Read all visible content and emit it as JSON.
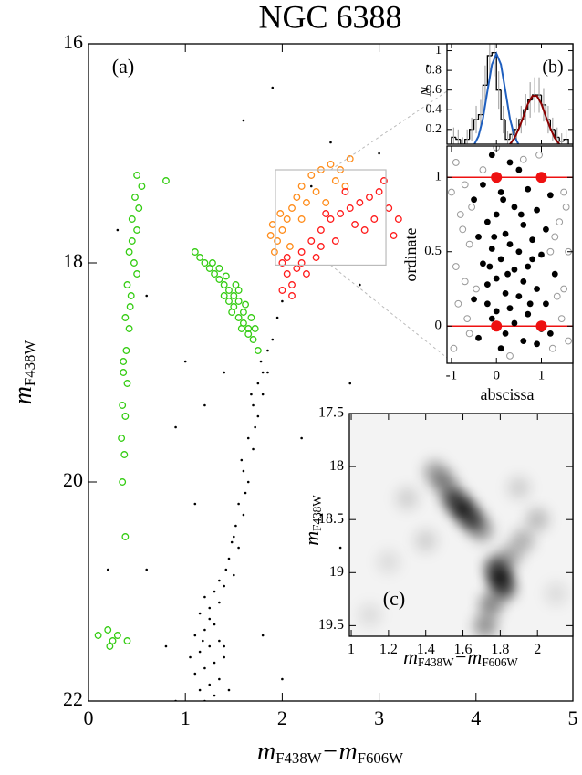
{
  "chart_data": [
    {
      "type": "scatter",
      "title": "NGC 6388",
      "panel_label": "(a)",
      "xlabel": [
        "m",
        "F438W",
        "−m",
        "F606W"
      ],
      "ylabel": [
        "m",
        "F438W"
      ],
      "xlim": [
        0,
        5
      ],
      "ylim": [
        22,
        16
      ],
      "xticks": [
        0,
        1,
        2,
        3,
        4,
        5
      ],
      "yticks": [
        16,
        18,
        20,
        22
      ],
      "zoom_box": {
        "xlim": [
          1.93,
          3.07
        ],
        "ylim": [
          18.02,
          17.15
        ],
        "color": "#bbbbbb"
      },
      "series": [
        {
          "color": "#000000",
          "marker": "dot",
          "x": [
            1.2,
            1.3,
            1.15,
            1.25,
            1.35,
            1.1,
            1.2,
            1.3,
            1.4,
            1.15,
            1.25,
            1.35,
            1.1,
            1.2,
            1.3,
            1.15,
            1.25,
            1.35,
            1.2,
            1.3,
            1.4,
            1.05,
            1.45,
            1.25,
            1.18,
            1.4,
            1.5,
            1.45,
            1.55,
            1.5,
            1.6,
            1.55,
            1.65,
            1.6,
            1.7,
            1.65,
            1.75,
            1.7,
            1.8,
            1.75,
            1.8,
            1.78,
            1.85,
            1.9,
            1.95,
            2.0,
            1.72,
            1.62,
            1.52,
            1.42,
            1.58,
            1.68,
            1.85,
            1.35,
            1.48,
            0.3,
            0.6,
            0.9,
            1.2,
            2.5,
            3.0,
            2.7,
            2.4,
            0.8,
            2.0,
            1.8,
            2.3,
            1.0,
            2.8,
            3.5,
            1.6,
            0.9,
            2.6,
            1.4,
            0.6,
            3.2,
            1.1,
            2.2,
            0.2,
            1.9
          ],
          "values": [
            22.0,
            21.95,
            21.9,
            21.85,
            21.8,
            21.75,
            21.7,
            21.65,
            21.6,
            21.55,
            21.5,
            21.45,
            21.4,
            21.35,
            21.3,
            21.2,
            21.15,
            21.1,
            21.05,
            21.0,
            21.5,
            21.6,
            21.9,
            21.25,
            21.45,
            20.95,
            20.85,
            20.7,
            20.6,
            20.5,
            20.3,
            20.2,
            20.0,
            19.9,
            19.7,
            19.6,
            19.4,
            19.3,
            19.2,
            19.1,
            19.0,
            18.9,
            18.8,
            18.7,
            18.5,
            18.35,
            19.5,
            20.1,
            20.4,
            20.8,
            19.8,
            19.2,
            19.0,
            20.9,
            20.55,
            17.7,
            20.8,
            19.5,
            19.3,
            16.9,
            17.0,
            19.1,
            20.3,
            21.5,
            21.8,
            21.4,
            17.3,
            18.9,
            18.2,
            16.2,
            16.7,
            22.0,
            20.6,
            19.0,
            18.3,
            19.5,
            20.2,
            19.6,
            20.8,
            16.4
          ]
        },
        {
          "color": "#33cc11",
          "marker": "ring",
          "x": [
            0.5,
            0.55,
            0.48,
            0.52,
            0.45,
            0.5,
            0.42,
            0.47,
            0.4,
            0.44,
            0.38,
            0.42,
            0.39,
            0.36,
            0.4,
            0.35,
            0.38,
            0.34,
            0.37,
            0.35,
            0.38,
            0.45,
            0.5,
            0.43,
            0.36,
            0.8,
            0.2,
            0.25,
            0.3,
            0.22,
            0.4,
            0.1,
            1.1,
            1.15,
            1.2,
            1.25,
            1.3,
            1.35,
            1.4,
            1.45,
            1.5,
            1.55,
            1.6,
            1.45,
            1.5,
            1.55,
            1.6,
            1.65,
            1.7,
            1.75,
            1.55,
            1.62,
            1.4,
            1.48,
            1.58,
            1.68,
            1.35,
            1.28,
            1.42,
            1.52,
            1.65,
            1.72
          ],
          "values": [
            17.2,
            17.3,
            17.4,
            17.5,
            17.6,
            17.7,
            17.9,
            18.0,
            18.2,
            18.3,
            18.5,
            18.6,
            18.8,
            19.0,
            19.1,
            19.3,
            19.4,
            19.6,
            19.75,
            20.0,
            20.5,
            17.8,
            18.1,
            18.4,
            18.9,
            17.25,
            21.35,
            21.45,
            21.4,
            21.5,
            21.45,
            21.4,
            17.9,
            17.95,
            18.0,
            18.05,
            18.1,
            18.15,
            18.2,
            18.25,
            18.3,
            18.35,
            18.45,
            18.35,
            18.4,
            18.5,
            18.55,
            18.6,
            18.7,
            18.8,
            18.25,
            18.38,
            18.3,
            18.45,
            18.6,
            18.5,
            18.05,
            18.0,
            18.12,
            18.2,
            18.65,
            18.6
          ]
        },
        {
          "color": "#ff8c1a",
          "marker": "ring",
          "x": [
            1.9,
            1.95,
            2.0,
            1.92,
            2.05,
            2.1,
            2.15,
            2.2,
            2.3,
            2.4,
            2.5,
            2.6,
            2.65,
            2.55,
            2.35,
            2.25,
            1.98,
            2.08,
            2.45,
            2.7,
            2.2,
            1.88
          ],
          "values": [
            17.65,
            17.8,
            17.7,
            17.9,
            17.6,
            17.5,
            17.4,
            17.3,
            17.2,
            17.15,
            17.1,
            17.15,
            17.3,
            17.25,
            17.35,
            17.45,
            17.55,
            17.85,
            17.45,
            17.05,
            17.6,
            17.75
          ]
        },
        {
          "color": "#ff1a1a",
          "marker": "ring",
          "x": [
            2.0,
            2.05,
            2.1,
            2.0,
            2.15,
            2.2,
            2.3,
            2.4,
            2.5,
            2.6,
            2.7,
            2.8,
            2.9,
            3.0,
            3.1,
            3.2,
            2.95,
            2.75,
            2.55,
            2.35,
            2.25,
            2.1,
            2.05,
            3.05,
            3.15,
            2.65,
            2.45,
            2.85,
            2.2,
            2.4
          ],
          "values": [
            18.0,
            18.1,
            18.2,
            18.25,
            18.05,
            17.9,
            17.8,
            17.7,
            17.6,
            17.55,
            17.5,
            17.45,
            17.4,
            17.35,
            17.5,
            17.6,
            17.6,
            17.65,
            17.8,
            17.95,
            18.1,
            18.3,
            17.95,
            17.25,
            17.75,
            17.35,
            17.55,
            17.7,
            18.0,
            17.85
          ]
        }
      ]
    },
    {
      "type": "histogram",
      "panel_label": "(b)",
      "ylabel": "N",
      "xlim": [
        -1.1,
        1.7
      ],
      "ylim": [
        0.05,
        1.07
      ],
      "xticks": [
        -1,
        0,
        1
      ],
      "xticklabels": false,
      "yticks": [
        0.2,
        0.4,
        0.6,
        0.8,
        1
      ],
      "color": "#000000",
      "error_color": "#aaaaaa",
      "bins": [
        -1.0,
        -0.9,
        -0.8,
        -0.7,
        -0.6,
        -0.5,
        -0.4,
        -0.3,
        -0.2,
        -0.1,
        0.0,
        0.1,
        0.2,
        0.3,
        0.4,
        0.5,
        0.6,
        0.7,
        0.8,
        0.9,
        1.0,
        1.1,
        1.2,
        1.3,
        1.4,
        1.5,
        1.6
      ],
      "counts": [
        0.12,
        0.1,
        0.05,
        0.1,
        0.2,
        0.3,
        0.35,
        0.65,
        0.95,
        0.98,
        0.6,
        0.3,
        0.1,
        0.15,
        0.2,
        0.3,
        0.4,
        0.5,
        0.55,
        0.55,
        0.45,
        0.3,
        0.2,
        0.12,
        0.08,
        0.1
      ],
      "errors": [
        0.1,
        0.1,
        0.07,
        0.1,
        0.12,
        0.14,
        0.15,
        0.2,
        0.24,
        0.24,
        0.19,
        0.14,
        0.08,
        0.1,
        0.12,
        0.14,
        0.16,
        0.18,
        0.18,
        0.18,
        0.17,
        0.14,
        0.12,
        0.1,
        0.08,
        0.1
      ],
      "series": [
        {
          "color": "#1f5fbf",
          "x": [
            -0.6,
            -0.5,
            -0.4,
            -0.3,
            -0.2,
            -0.1,
            0.0,
            0.1,
            0.2,
            0.3,
            0.4,
            0.5,
            0.6
          ],
          "values": [
            0.01,
            0.04,
            0.13,
            0.31,
            0.59,
            0.86,
            0.97,
            0.86,
            0.59,
            0.31,
            0.13,
            0.04,
            0.01
          ]
        },
        {
          "color": "#8b0000",
          "x": [
            0.2,
            0.3,
            0.4,
            0.5,
            0.6,
            0.7,
            0.8,
            0.9,
            1.0,
            1.1,
            1.2,
            1.3,
            1.4,
            1.5,
            1.6
          ],
          "values": [
            0.02,
            0.05,
            0.11,
            0.21,
            0.33,
            0.46,
            0.54,
            0.54,
            0.46,
            0.33,
            0.21,
            0.11,
            0.05,
            0.02,
            0.01
          ]
        }
      ]
    },
    {
      "type": "scatter",
      "xlabel": "abscissa",
      "ylabel": "ordinate",
      "xlim": [
        -1.1,
        1.7
      ],
      "ylim": [
        -0.25,
        1.21
      ],
      "xticks": [
        -1,
        0,
        1
      ],
      "yticks": [
        0,
        0.5,
        1
      ],
      "hlines": [
        0,
        1
      ],
      "hline_color": "#ee1111",
      "series": [
        {
          "color": "#999999",
          "marker": "open",
          "x": [
            -0.9,
            -0.7,
            1.5,
            -0.8,
            1.4,
            -0.6,
            1.6,
            -0.9,
            1.3,
            -0.7,
            1.5,
            -0.85,
            1.45,
            -0.6,
            1.6,
            -0.95,
            0.3,
            0.6,
            -0.45,
            1.2,
            -0.75,
            1.55,
            -1.0,
            0.95,
            -0.3,
            1.35,
            -0.55,
            1.25,
            0.0,
            -0.65
          ],
          "values": [
            1.1,
            0.95,
            0.9,
            0.75,
            0.7,
            0.55,
            0.5,
            0.4,
            0.6,
            0.3,
            0.25,
            0.15,
            0.05,
            -0.05,
            -0.1,
            -0.15,
            -0.2,
            1.12,
            0.25,
            0.5,
            0.65,
            0.8,
            0.9,
            1.15,
            1.05,
            0.2,
            0.8,
            -0.15,
            1.2,
            0.05
          ]
        },
        {
          "color": "#000000",
          "marker": "filled",
          "x": [
            -0.1,
            0.3,
            0.5,
            -0.3,
            0.1,
            0.7,
            1.2,
            -0.5,
            0.4,
            0.9,
            0.0,
            -0.2,
            0.6,
            1.1,
            0.2,
            -0.4,
            0.8,
            0.3,
            -0.1,
            0.5,
            1.0,
            0.1,
            -0.3,
            0.7,
            0.4,
            1.3,
            0.0,
            0.6,
            -0.2,
            0.9,
            0.2,
            0.5,
            -0.5,
            1.1,
            0.3,
            0.0,
            0.7,
            -0.1,
            0.4,
            1.0,
            0.2,
            -0.4,
            0.6,
            0.9,
            0.1,
            1.2,
            -0.2,
            0.8,
            0.15,
            -0.05,
            0.55,
            1.05,
            0.25,
            0.75,
            -0.15
          ],
          "values": [
            1.15,
            1.1,
            1.05,
            0.95,
            0.9,
            0.92,
            0.88,
            0.85,
            0.8,
            0.78,
            0.75,
            0.7,
            0.68,
            0.65,
            0.62,
            0.6,
            0.58,
            0.55,
            0.52,
            0.5,
            0.48,
            0.45,
            0.42,
            0.4,
            0.38,
            0.35,
            0.32,
            0.3,
            0.28,
            0.25,
            0.22,
            0.2,
            0.18,
            0.15,
            0.12,
            0.1,
            0.08,
            0.05,
            0.02,
            -0.02,
            -0.05,
            -0.08,
            -0.1,
            -0.12,
            -0.15,
            -0.05,
            0.15,
            0.45,
            0.85,
            0.6,
            0.75,
            1.0,
            0.35,
            0.15,
            0.4
          ]
        },
        {
          "color": "#ee1111",
          "marker": "big",
          "x": [
            0,
            1,
            0,
            1
          ],
          "values": [
            1,
            1,
            0,
            0
          ]
        }
      ]
    },
    {
      "type": "density",
      "panel_label": "(c)",
      "xlabel": [
        "m",
        "F438W",
        "−m",
        "F606W"
      ],
      "ylabel": [
        "m",
        "F438W"
      ],
      "xlim": [
        0.99,
        2.19
      ],
      "ylim": [
        19.6,
        17.5
      ],
      "xticks": [
        1,
        1.2,
        1.4,
        1.6,
        1.8,
        2
      ],
      "yticks": [
        17.5,
        18,
        18.5,
        19,
        19.5
      ],
      "color": "#000000",
      "x": [
        1.6,
        1.55,
        1.65,
        1.5,
        1.45,
        1.7,
        1.8,
        1.78,
        1.82,
        1.75,
        1.72,
        1.85,
        1.92,
        2.0,
        1.4,
        1.3,
        1.2,
        2.1,
        1.9,
        1.1
      ],
      "y": [
        18.4,
        18.3,
        18.5,
        18.15,
        18.05,
        18.6,
        19.05,
        18.95,
        19.15,
        19.3,
        19.5,
        18.85,
        18.7,
        18.5,
        18.7,
        18.3,
        18.9,
        19.2,
        18.2,
        19.4
      ],
      "values": [
        1,
        0.8,
        0.8,
        0.5,
        0.35,
        0.4,
        1,
        0.7,
        0.7,
        0.5,
        0.45,
        0.35,
        0.3,
        0.25,
        0.15,
        0.15,
        0.1,
        0.1,
        0.15,
        0.1
      ]
    }
  ]
}
